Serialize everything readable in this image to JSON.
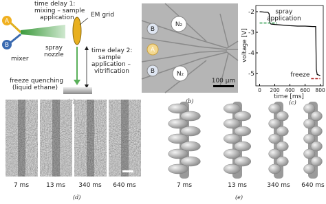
{
  "panels": {
    "a": {
      "delay1": [
        "time delay 1:",
        "mixing – sample",
        "application"
      ],
      "grid": "EM grid",
      "inlet_a": "A",
      "inlet_b": "B",
      "mixer": "mixer",
      "nozzle": [
        "spray",
        "nozzle"
      ],
      "delay2": [
        "time delay 2:",
        "sample",
        "application –",
        "vitrification"
      ],
      "freeze": [
        "freeze quenching",
        "(liquid ethane)"
      ],
      "label": "(a)"
    },
    "b": {
      "inlets": [
        "B",
        "A",
        "B"
      ],
      "gas": [
        "N₂",
        "N₂"
      ],
      "scale": "100 µm",
      "label": "(b)"
    },
    "c": {
      "label": "(c)"
    },
    "d": {
      "times": [
        "7 ms",
        "13 ms",
        "340 ms",
        "640 ms"
      ],
      "label": "(d)"
    },
    "e": {
      "times": [
        "7 ms",
        "13 ms",
        "340 ms",
        "640 ms"
      ],
      "label": "(e)"
    }
  },
  "chart_data": {
    "type": "line",
    "ylabel": "voltage [V]",
    "xlabel": "time [ms]",
    "x": [
      0,
      60,
      110,
      125,
      135,
      150,
      200,
      300,
      400,
      500,
      600,
      700,
      740,
      748,
      760,
      800
    ],
    "values": [
      -2.0,
      -2.02,
      -2.03,
      -2.1,
      -2.55,
      -2.6,
      -2.62,
      -2.65,
      -2.68,
      -2.7,
      -2.7,
      -2.72,
      -2.72,
      -4.8,
      -5.05,
      -5.1
    ],
    "color": "#000000",
    "xlim": [
      -50,
      840
    ],
    "ylim": [
      -1.7,
      -5.6
    ],
    "xticks": [
      0,
      200,
      400,
      600,
      800
    ],
    "yticks": [
      -2,
      -3,
      -4,
      -5
    ],
    "annotations": [
      {
        "lines": [
          "spray",
          "application"
        ],
        "y": -2.55,
        "x": [
          0,
          230
        ],
        "color": "#2a9a4a"
      },
      {
        "lines": [
          "freeze"
        ],
        "y": -5.25,
        "x": [
          680,
          800
        ],
        "color": "#b02020"
      }
    ]
  }
}
